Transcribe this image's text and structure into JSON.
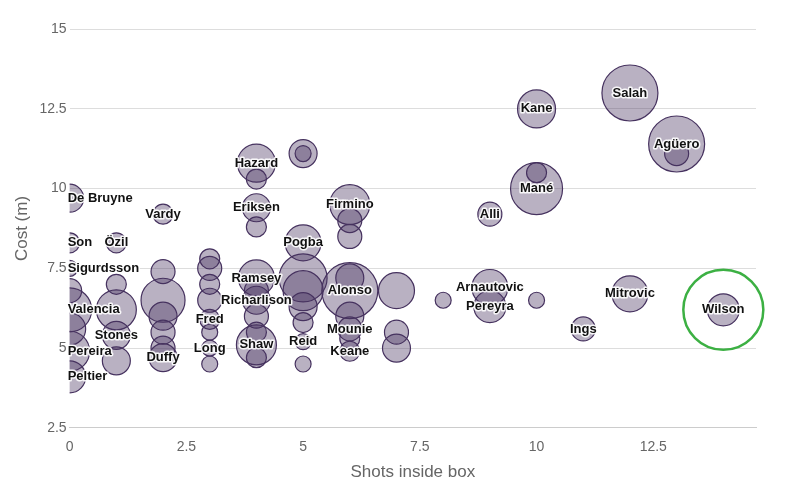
{
  "chart_data": {
    "type": "bubble",
    "x_label": "Shots inside box",
    "y_label": "Cost (m)",
    "color": "#46325f",
    "grid": true,
    "xlim": [
      0,
      14.7
    ],
    "xticks": [
      0,
      2.5,
      5,
      7.5,
      10,
      12.5
    ],
    "ylim": [
      2.5,
      15
    ],
    "yticks": [
      2.5,
      5,
      7.5,
      10,
      12.5,
      15
    ],
    "x": [
      12,
      10,
      13,
      13,
      10,
      10,
      9,
      4,
      4,
      5,
      5,
      6,
      6,
      6,
      0,
      2,
      4,
      4,
      0,
      1,
      5,
      0,
      2,
      4,
      6,
      9,
      9,
      12,
      11,
      14,
      4,
      6,
      5,
      6,
      4,
      3,
      3,
      2,
      1,
      0,
      0,
      0,
      8,
      10,
      7,
      7,
      7,
      1,
      1,
      1,
      2,
      2,
      2,
      2,
      3,
      3,
      3,
      3,
      3,
      3,
      4,
      4,
      4,
      5,
      5,
      5,
      5,
      5,
      6,
      6,
      6,
      4,
      0,
      0
    ],
    "values": [
      13,
      12.5,
      11.4,
      11.1,
      10,
      10.5,
      9.2,
      10.8,
      10.3,
      11.1,
      11.1,
      9.5,
      9.0,
      8.5,
      9.7,
      9.2,
      9.4,
      8.8,
      8.3,
      8.3,
      8.3,
      7.5,
      7.4,
      7.2,
      6.8,
      6.9,
      6.3,
      6.7,
      5.6,
      6.2,
      6.5,
      5.6,
      5.2,
      4.9,
      5.1,
      5.0,
      5.9,
      4.7,
      5.4,
      4.9,
      4.1,
      6.2,
      6.5,
      6.5,
      6.8,
      5.5,
      5.0,
      7.0,
      6.2,
      4.6,
      6.5,
      6.0,
      5.5,
      5.0,
      7.8,
      7.5,
      7.0,
      6.5,
      5.5,
      4.5,
      6.0,
      5.5,
      4.7,
      7.2,
      6.8,
      6.3,
      5.8,
      4.5,
      6.0,
      5.3,
      7.2,
      6.8,
      5.6,
      6.8
    ],
    "sizes": [
      28,
      19,
      28,
      12,
      26,
      10,
      12,
      19,
      10,
      14,
      8,
      20,
      12,
      12,
      14,
      10,
      14,
      10,
      10,
      10,
      18,
      8,
      12,
      18,
      28,
      18,
      16,
      18,
      12,
      16,
      14,
      12,
      8,
      10,
      20,
      8,
      10,
      14,
      14,
      20,
      16,
      22,
      8,
      8,
      18,
      12,
      14,
      10,
      20,
      14,
      22,
      14,
      12,
      12,
      10,
      12,
      10,
      12,
      8,
      8,
      12,
      10,
      10,
      24,
      20,
      14,
      10,
      8,
      14,
      10,
      14,
      12,
      16,
      12
    ],
    "labels": [
      "Salah",
      "Kane",
      "Agüero",
      null,
      "Mané",
      null,
      "Alli",
      "Hazard",
      null,
      null,
      null,
      "Firmino",
      null,
      null,
      "De Bruyne",
      "Vardy",
      "Eriksen",
      null,
      "Son",
      "Özil",
      "Pogba",
      "Sigurdsson",
      null,
      "Ramsey",
      "Alonso",
      "Arnautovic",
      "Pereyra",
      "Mitrovic",
      "Ings",
      "Wilson",
      "Richarlison",
      "Mounie",
      "Reid",
      "Keane",
      "Shaw",
      "Long",
      "Fred",
      "Duffy",
      "Stones",
      "Pereira",
      "Peltier",
      "Valencia",
      null,
      null,
      null,
      null,
      null,
      null,
      null,
      null,
      null,
      null,
      null,
      null,
      null,
      null,
      null,
      null,
      null,
      null,
      null,
      null,
      null,
      null,
      null,
      null,
      null,
      null,
      null,
      null,
      null,
      null,
      null,
      null
    ]
  }
}
